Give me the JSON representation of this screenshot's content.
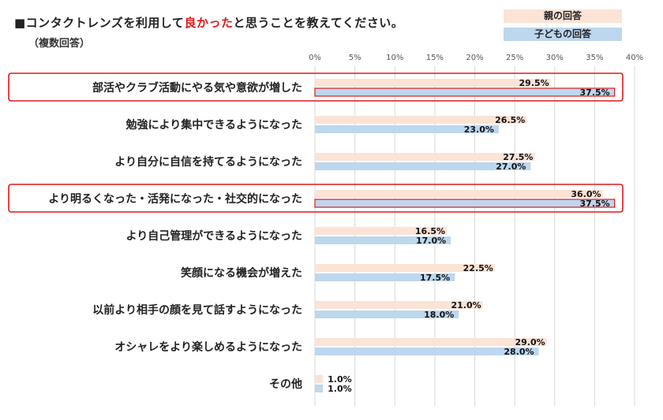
{
  "title_prefix": "■コンタクトレンズを利用して",
  "title_highlight": "良かった",
  "title_suffix": "と思うことを教えてください。",
  "subtitle": "（複数回答）",
  "colors": {
    "parent_bar": "#fbe3d5",
    "child_bar": "#bdd7ee",
    "highlight_frame": "#e01818",
    "grid": "#d9d9d9"
  },
  "chart_data": {
    "type": "bar",
    "orientation": "horizontal",
    "title": "■コンタクトレンズを利用して良かったと思うことを教えてください。",
    "subtitle": "（複数回答）",
    "xlim": [
      0,
      40
    ],
    "xticks": [
      "0%",
      "5%",
      "10%",
      "15%",
      "20%",
      "25%",
      "30%",
      "35%",
      "40%"
    ],
    "xtick_values": [
      0,
      5,
      10,
      15,
      20,
      25,
      30,
      35,
      40
    ],
    "grid": "vertical",
    "legend_position": "top-right",
    "categories": [
      "部活やクラブ活動にやる気や意欲が増した",
      "勉強により集中できるようになった",
      "より自分に自信を持てるようになった",
      "より明るくなった・活発になった・社交的になった",
      "より自己管理ができるようになった",
      "笑顔になる機会が増えた",
      "以前より相手の顔を見て話すようになった",
      "オシャレをより楽しめるようになった",
      "その他"
    ],
    "highlighted": [
      true,
      false,
      false,
      true,
      false,
      false,
      false,
      false,
      false
    ],
    "series": [
      {
        "name": "親の回答",
        "values": [
          29.5,
          26.5,
          27.5,
          36.0,
          16.5,
          22.5,
          21.0,
          29.0,
          1.0
        ],
        "labels": [
          "29.5%",
          "26.5%",
          "27.5%",
          "36.0%",
          "16.5%",
          "22.5%",
          "21.0%",
          "29.0%",
          "1.0%"
        ]
      },
      {
        "name": "子どもの回答",
        "values": [
          37.5,
          23.0,
          27.0,
          37.5,
          17.0,
          17.5,
          18.0,
          28.0,
          1.0
        ],
        "labels": [
          "37.5%",
          "23.0%",
          "27.0%",
          "37.5%",
          "17.0%",
          "17.5%",
          "18.0%",
          "28.0%",
          "1.0%"
        ]
      }
    ]
  }
}
